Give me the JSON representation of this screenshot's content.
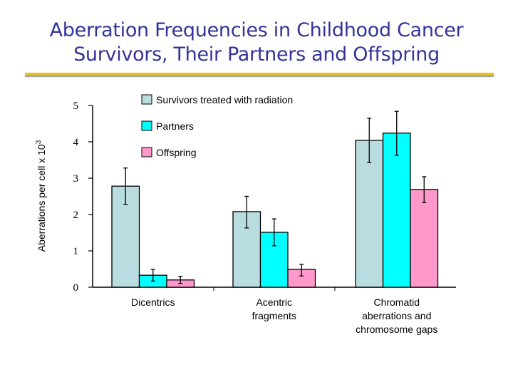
{
  "title_line1": "Aberration Frequencies in Childhood Cancer",
  "title_line2": "Survivors, Their Partners and Offspring",
  "colors": {
    "title": "#333399",
    "rule": "#e8c020"
  },
  "chart_data": {
    "type": "bar",
    "title": "Aberration Frequencies in Childhood Cancer Survivors, Their Partners and Offspring",
    "xlabel": "",
    "ylabel": "Aberrations per cell x 10",
    "ylabel_sup": "3",
    "ylim": [
      0,
      5
    ],
    "yticks": [
      "0",
      "1",
      "2",
      "3",
      "4",
      "5"
    ],
    "grid": false,
    "legend_position": "top-center",
    "categories": [
      [
        "Dicentrics"
      ],
      [
        "Acentric",
        "fragments"
      ],
      [
        "Chromatid",
        "aberrations and",
        "chromosome gaps"
      ]
    ],
    "series": [
      {
        "name": "Survivors treated with radiation",
        "color": "#b8dce0",
        "values": [
          2.78,
          2.08,
          4.04
        ],
        "err_high": [
          3.28,
          2.5,
          4.65
        ],
        "err_low": [
          2.28,
          1.63,
          3.43
        ]
      },
      {
        "name": "Partners",
        "color": "#00ffff",
        "values": [
          0.33,
          1.51,
          4.24
        ],
        "err_high": [
          0.49,
          1.88,
          4.84
        ],
        "err_low": [
          0.17,
          1.14,
          3.63
        ]
      },
      {
        "name": "Offspring",
        "color": "#ff99cc",
        "values": [
          0.2,
          0.49,
          2.69
        ],
        "err_high": [
          0.3,
          0.63,
          3.04
        ],
        "err_low": [
          0.1,
          0.31,
          2.33
        ]
      }
    ]
  }
}
